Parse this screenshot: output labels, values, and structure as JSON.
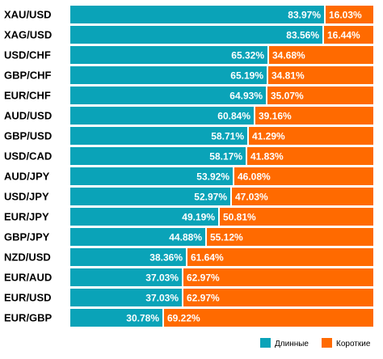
{
  "chart_data": {
    "type": "bar",
    "stacked": true,
    "orientation": "horizontal",
    "normalized_percent": true,
    "categories": [
      "XAU/USD",
      "XAG/USD",
      "USD/CHF",
      "GBP/CHF",
      "EUR/CHF",
      "AUD/USD",
      "GBP/USD",
      "USD/CAD",
      "AUD/JPY",
      "USD/JPY",
      "EUR/JPY",
      "GBP/JPY",
      "NZD/USD",
      "EUR/AUD",
      "EUR/USD",
      "EUR/GBP"
    ],
    "series": [
      {
        "name": "Длинные",
        "color": "#0aa3b8",
        "values": [
          83.97,
          83.56,
          65.32,
          65.19,
          64.93,
          60.84,
          58.71,
          58.17,
          53.92,
          52.97,
          49.19,
          44.88,
          38.36,
          37.03,
          37.03,
          30.78
        ],
        "labels": [
          "83.97%",
          "83.56%",
          "65.32%",
          "65.19%",
          "64.93%",
          "60.84%",
          "58.71%",
          "58.17%",
          "53.92%",
          "52.97%",
          "49.19%",
          "44.88%",
          "38.36%",
          "37.03%",
          "37.03%",
          "30.78%"
        ]
      },
      {
        "name": "Короткие",
        "color": "#ff6a00",
        "values": [
          16.03,
          16.44,
          34.68,
          34.81,
          35.07,
          39.16,
          41.29,
          41.83,
          46.08,
          47.03,
          50.81,
          55.12,
          61.64,
          62.97,
          62.97,
          69.22
        ],
        "labels": [
          "16.03%",
          "16.44%",
          "34.68%",
          "34.81%",
          "35.07%",
          "39.16%",
          "41.29%",
          "41.83%",
          "46.08%",
          "47.03%",
          "50.81%",
          "55.12%",
          "61.64%",
          "62.97%",
          "62.97%",
          "69.22%"
        ]
      }
    ],
    "legend": {
      "position": "bottom-right",
      "items": [
        {
          "label": "Длинные",
          "color": "#0aa3b8"
        },
        {
          "label": "Короткие",
          "color": "#ff6a00"
        }
      ]
    },
    "xlim": [
      0,
      100
    ],
    "grid": false
  }
}
